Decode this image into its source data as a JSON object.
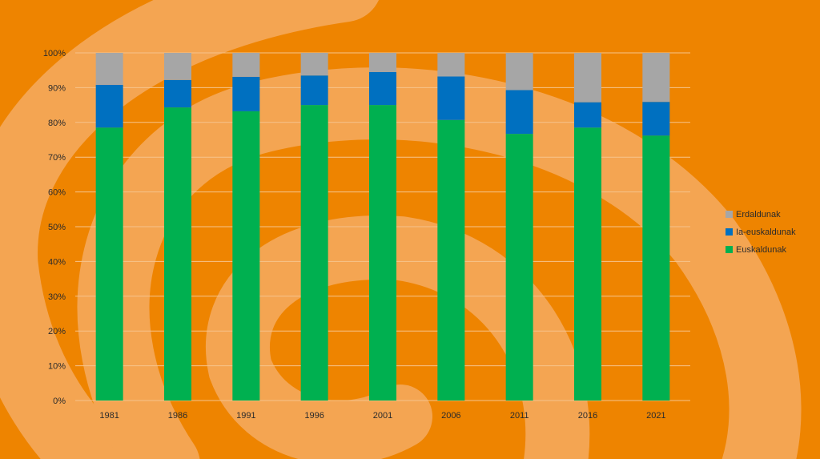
{
  "colors": {
    "background": "#ee8400",
    "swirl": "#f4a552",
    "gridline": "#f6c48c"
  },
  "chart_data": {
    "type": "bar",
    "stacked": true,
    "normalized": true,
    "categories": [
      "1981",
      "1986",
      "1991",
      "1996",
      "2001",
      "2006",
      "2011",
      "2016",
      "2021"
    ],
    "series": [
      {
        "name": "Euskaldunak",
        "color": "#00b050",
        "values": [
          78.5,
          84.3,
          83.2,
          85.0,
          85.0,
          80.7,
          76.7,
          78.5,
          76.2
        ]
      },
      {
        "name": "Ia-euskaldunak",
        "color": "#0070c0",
        "values": [
          12.3,
          7.9,
          9.9,
          8.5,
          9.5,
          12.5,
          12.6,
          7.3,
          9.7
        ]
      },
      {
        "name": "Erdaldunak",
        "color": "#a6a6a6",
        "values": [
          9.2,
          7.8,
          6.9,
          6.5,
          5.5,
          6.8,
          10.7,
          14.2,
          14.1
        ]
      }
    ],
    "legend_order": [
      "Erdaldunak",
      "Ia-euskaldunak",
      "Euskaldunak"
    ],
    "y_ticks": [
      "0%",
      "10%",
      "20%",
      "30%",
      "40%",
      "50%",
      "60%",
      "70%",
      "80%",
      "90%",
      "100%"
    ],
    "ylim": [
      0,
      100
    ],
    "grid": true,
    "legend_position": "right"
  }
}
